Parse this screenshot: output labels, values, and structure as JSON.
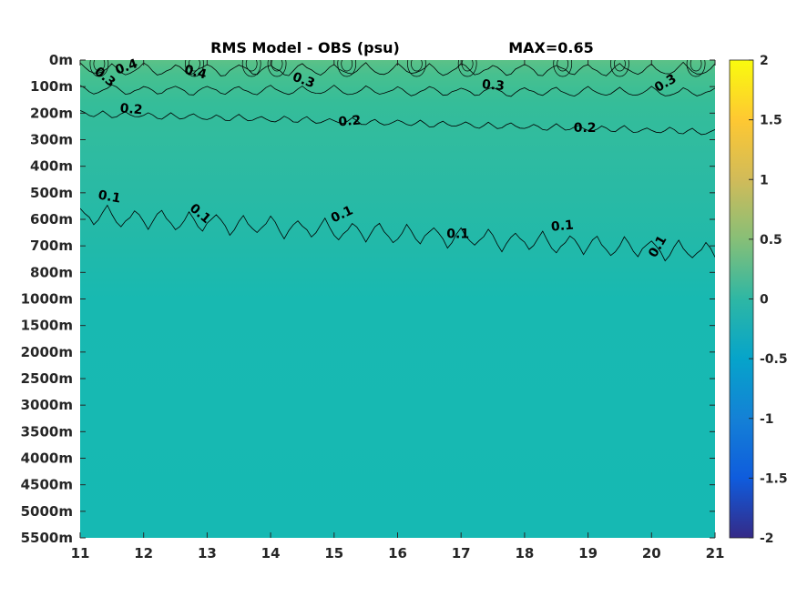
{
  "chart_data": {
    "type": "heatmap",
    "title": "RMS Model - OBS (psu)",
    "annotation": "MAX=0.65",
    "x_ticks": [
      11,
      12,
      13,
      14,
      15,
      16,
      17,
      18,
      19,
      20,
      21
    ],
    "xlim": [
      11,
      21
    ],
    "y_ticks": [
      "0m",
      "100m",
      "200m",
      "300m",
      "400m",
      "500m",
      "600m",
      "700m",
      "800m",
      "1000m",
      "1500m",
      "2000m",
      "2500m",
      "3000m",
      "3500m",
      "4000m",
      "4500m",
      "5000m",
      "5500m"
    ],
    "colorbar": {
      "range": [
        -2,
        2
      ],
      "ticks": [
        2,
        1.5,
        1,
        0.5,
        0,
        -0.5,
        -1,
        -1.5,
        -2
      ],
      "tick_labels": [
        "2",
        "1.5",
        "1",
        "0.5",
        "0",
        "-0.5",
        "-1",
        "-1.5",
        "-2"
      ]
    },
    "contour_levels": [
      0.1,
      0.2,
      0.3,
      0.4
    ],
    "contour_labels": [
      {
        "text": "0.3",
        "x": 11.35,
        "depth_index": 0.75,
        "angle": 40
      },
      {
        "text": "0.4",
        "x": 11.75,
        "depth_index": 0.4,
        "angle": -20
      },
      {
        "text": "0.4",
        "x": 12.8,
        "depth_index": 0.6,
        "angle": 15
      },
      {
        "text": "0.3",
        "x": 14.5,
        "depth_index": 0.9,
        "angle": 20
      },
      {
        "text": "0.3",
        "x": 17.5,
        "depth_index": 1.1,
        "angle": 5
      },
      {
        "text": "0.3",
        "x": 20.25,
        "depth_index": 1.0,
        "angle": -30
      },
      {
        "text": "0.2",
        "x": 11.8,
        "depth_index": 2.0,
        "angle": 5
      },
      {
        "text": "0.2",
        "x": 15.25,
        "depth_index": 2.45,
        "angle": -5
      },
      {
        "text": "0.2",
        "x": 18.95,
        "depth_index": 2.7,
        "angle": 0
      },
      {
        "text": "0.1",
        "x": 11.45,
        "depth_index": 5.3,
        "angle": 10
      },
      {
        "text": "0.1",
        "x": 12.85,
        "depth_index": 5.9,
        "angle": 40
      },
      {
        "text": "0.1",
        "x": 15.15,
        "depth_index": 5.95,
        "angle": -25
      },
      {
        "text": "0.1",
        "x": 16.95,
        "depth_index": 6.7,
        "angle": 0
      },
      {
        "text": "0.1",
        "x": 18.6,
        "depth_index": 6.4,
        "angle": -5
      },
      {
        "text": "0.1",
        "x": 20.15,
        "depth_index": 7.1,
        "angle": -60
      }
    ]
  }
}
